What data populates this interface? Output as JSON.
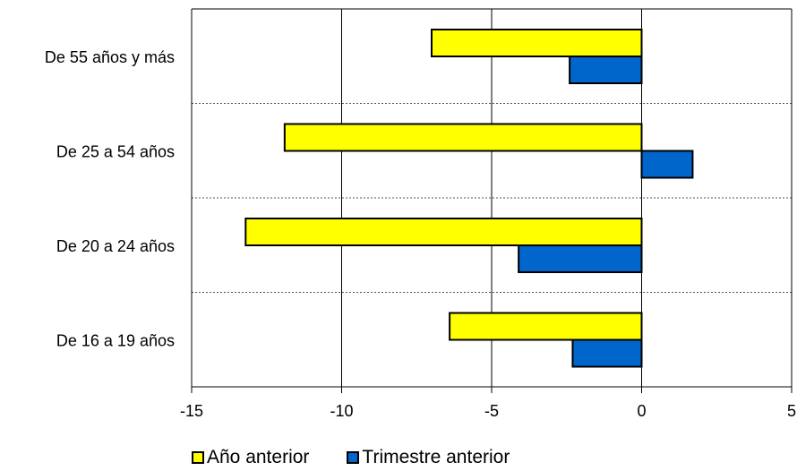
{
  "chart_data": {
    "type": "bar",
    "orientation": "horizontal",
    "categories": [
      "De 55 años y más",
      "De 25 a 54 años",
      "De 20 a 24 años",
      "De 16 a 19 años"
    ],
    "series": [
      {
        "name": "Año anterior",
        "color": "#FFFF00",
        "values": [
          -7.0,
          -11.9,
          -13.2,
          -6.4
        ]
      },
      {
        "name": "Trimestre anterior",
        "color": "#0066CC",
        "values": [
          -2.4,
          1.7,
          -4.1,
          -2.3
        ]
      }
    ],
    "xlim": [
      -15,
      5
    ],
    "xticks": [
      "-15",
      "-10",
      "-5",
      "0",
      "5"
    ],
    "xvalues": [
      -15,
      -10,
      -5,
      0,
      5
    ],
    "vertical_grid": true,
    "legend_position": "bottom",
    "title": "",
    "xlabel": "",
    "ylabel": ""
  }
}
